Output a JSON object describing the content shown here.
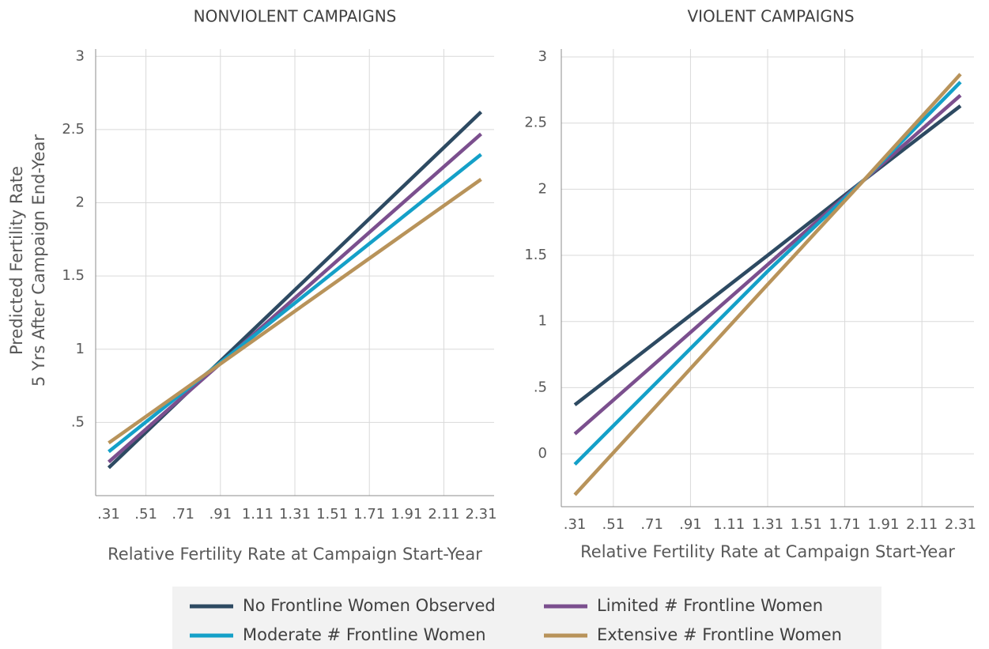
{
  "chart_data": [
    {
      "type": "line",
      "title": "NONVIOLENT CAMPAIGNS",
      "xlabel": "Relative Fertility Rate at Campaign Start-Year",
      "ylabel": [
        "Predicted Fertility Rate",
        "5 Yrs After Campaign End-Year"
      ],
      "x": [
        0.31,
        2.31
      ],
      "series": [
        {
          "name": "No Frontline Women Observed",
          "color": "#2d4a62",
          "values": [
            0.19,
            2.62
          ]
        },
        {
          "name": "Limited # Frontline Women",
          "color": "#7b4f8e",
          "values": [
            0.23,
            2.47
          ]
        },
        {
          "name": "Moderate # Frontline Women",
          "color": "#14a0c8",
          "values": [
            0.3,
            2.33
          ]
        },
        {
          "name": "Extensive # Frontline Women",
          "color": "#b8935a",
          "values": [
            0.36,
            2.16
          ]
        }
      ],
      "xlim": [
        0.24,
        2.38
      ],
      "ylim": [
        0,
        3.05
      ],
      "xticks": [
        {
          "value": 0.31,
          "label": ".31"
        },
        {
          "value": 0.51,
          "label": ".51"
        },
        {
          "value": 0.71,
          "label": ".71"
        },
        {
          "value": 0.91,
          "label": ".91"
        },
        1.11,
        1.31,
        1.51,
        1.71,
        1.91,
        2.11,
        2.31
      ],
      "yticks": [
        {
          "value": 0.5,
          "label": ".5"
        },
        1,
        1.5,
        2,
        2.5,
        3
      ],
      "grid": true
    },
    {
      "type": "line",
      "title": "VIOLENT CAMPAIGNS",
      "xlabel": "Relative Fertility Rate at Campaign Start-Year",
      "x": [
        0.31,
        1.31,
        1.81,
        2.31
      ],
      "series": [
        {
          "name": "No Frontline Women Observed",
          "color": "#2d4a62",
          "values": [
            0.37,
            1.5,
            2.07,
            2.63
          ]
        },
        {
          "name": "Limited # Frontline Women",
          "color": "#7b4f8e",
          "values": [
            0.15,
            1.43,
            2.07,
            2.71
          ]
        },
        {
          "name": "Moderate # Frontline Women",
          "color": "#14a0c8",
          "values": [
            -0.08,
            1.38,
            2.07,
            2.81
          ]
        },
        {
          "name": "Extensive # Frontline Women",
          "color": "#b8935a",
          "values": [
            -0.31,
            1.28,
            2.07,
            2.87
          ]
        }
      ],
      "xlim": [
        0.24,
        2.38
      ],
      "ylim": [
        -0.4,
        3.06
      ],
      "xticks": [
        {
          "value": 0.31,
          "label": ".31"
        },
        {
          "value": 0.51,
          "label": ".51"
        },
        {
          "value": 0.71,
          "label": ".71"
        },
        {
          "value": 0.91,
          "label": ".91"
        },
        1.11,
        1.31,
        1.51,
        1.71,
        1.91,
        2.11,
        2.31
      ],
      "yticks": [
        0,
        {
          "value": 0.5,
          "label": ".5"
        },
        1,
        1.5,
        2,
        2.5,
        3
      ],
      "grid": true
    }
  ]
}
